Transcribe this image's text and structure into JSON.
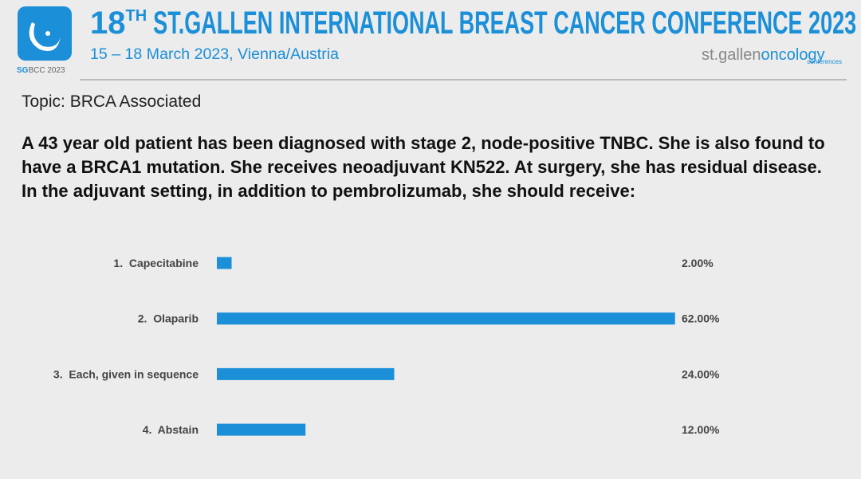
{
  "header": {
    "title_number": "18",
    "title_suffix": "TH",
    "title_rest": "ST.GALLEN INTERNATIONAL BREAST CANCER CONFERENCE 2023",
    "subtitle": "15 – 18 March 2023, Vienna/Austria",
    "logo_sg": "SG",
    "logo_rest": "BCC 2023",
    "brand_a": "st.gallen",
    "brand_b": "oncology",
    "brand_c": "conferences"
  },
  "topic": "Topic: BRCA Associated",
  "question": "A 43 year old patient has been diagnosed with stage 2, node-positive TNBC. She is also found to have a BRCA1 mutation. She receives neoadjuvant KN522. At surgery, she has residual disease. In the adjuvant setting, in addition to pembrolizumab, she should receive:",
  "chart_data": {
    "type": "bar",
    "orientation": "horizontal",
    "color": "#1b8fd8",
    "categories": [
      "1.  Capecitabine",
      "2.  Olaparib",
      "3.  Each, given in sequence",
      "4.  Abstain"
    ],
    "values": [
      2,
      62,
      24,
      12
    ],
    "value_labels": [
      "2.00%",
      "62.00%",
      "24.00%",
      "12.00%"
    ]
  }
}
